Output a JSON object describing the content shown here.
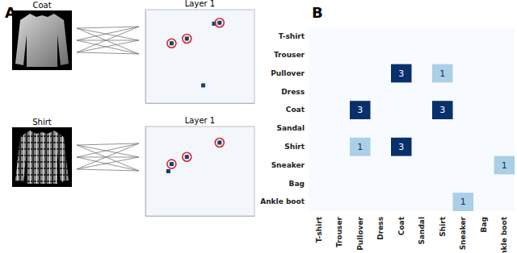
{
  "chart_data": [
    {
      "type": "scatter",
      "title": "Layer 1",
      "annotations": [
        "A",
        "Coat"
      ],
      "xlim": [
        0,
        1
      ],
      "ylim": [
        0,
        1
      ],
      "tick_labels": false,
      "series": [
        {
          "marker": "square",
          "color": "#1c3b6b",
          "x": [
            0.68,
            0.63,
            0.38,
            0.24,
            0.53
          ],
          "values": [
            0.86,
            0.85,
            0.69,
            0.64,
            0.19
          ]
        },
        {
          "marker": "circle",
          "color": "#d62728",
          "x": [
            0.68,
            0.38,
            0.24
          ],
          "values": [
            0.86,
            0.69,
            0.64
          ]
        }
      ]
    },
    {
      "type": "scatter",
      "title": "Layer 1",
      "annotations": [
        "Shirt"
      ],
      "xlim": [
        0,
        1
      ],
      "ylim": [
        0,
        1
      ],
      "tick_labels": false,
      "series": [
        {
          "marker": "square",
          "color": "#1c3b6b",
          "x": [
            0.68,
            0.38,
            0.24,
            0.21
          ],
          "values": [
            0.82,
            0.66,
            0.58,
            0.5
          ]
        },
        {
          "marker": "circle",
          "color": "#d62728",
          "x": [
            0.68,
            0.38,
            0.24
          ],
          "values": [
            0.82,
            0.66,
            0.58
          ]
        }
      ]
    },
    {
      "type": "heatmap",
      "annotations": [
        "B"
      ],
      "data_labels": true,
      "x_categories": [
        "T-shirt",
        "Trouser",
        "Pullover",
        "Dress",
        "Coat",
        "Sandal",
        "Shirt",
        "Sneaker",
        "Bag",
        "Ankle boot"
      ],
      "y_categories": [
        "T-shirt",
        "Trouser",
        "Pullover",
        "Dress",
        "Coat",
        "Sandal",
        "Shirt",
        "Sneaker",
        "Bag",
        "Ankle boot"
      ],
      "cells": [
        [
          null,
          null,
          null,
          null,
          null,
          null,
          null,
          null,
          null,
          null
        ],
        [
          null,
          null,
          null,
          null,
          null,
          null,
          null,
          null,
          null,
          null
        ],
        [
          null,
          null,
          null,
          null,
          3,
          null,
          1,
          null,
          null,
          null
        ],
        [
          null,
          null,
          null,
          null,
          null,
          null,
          null,
          null,
          null,
          null
        ],
        [
          null,
          null,
          3,
          null,
          null,
          null,
          3,
          null,
          null,
          null
        ],
        [
          null,
          null,
          null,
          null,
          null,
          null,
          null,
          null,
          null,
          null
        ],
        [
          null,
          null,
          1,
          null,
          3,
          null,
          null,
          null,
          null,
          null
        ],
        [
          null,
          null,
          null,
          null,
          null,
          null,
          null,
          null,
          null,
          1
        ],
        [
          null,
          null,
          null,
          null,
          null,
          null,
          null,
          null,
          null,
          null
        ],
        [
          null,
          null,
          null,
          null,
          null,
          null,
          null,
          1,
          null,
          null
        ]
      ]
    }
  ]
}
